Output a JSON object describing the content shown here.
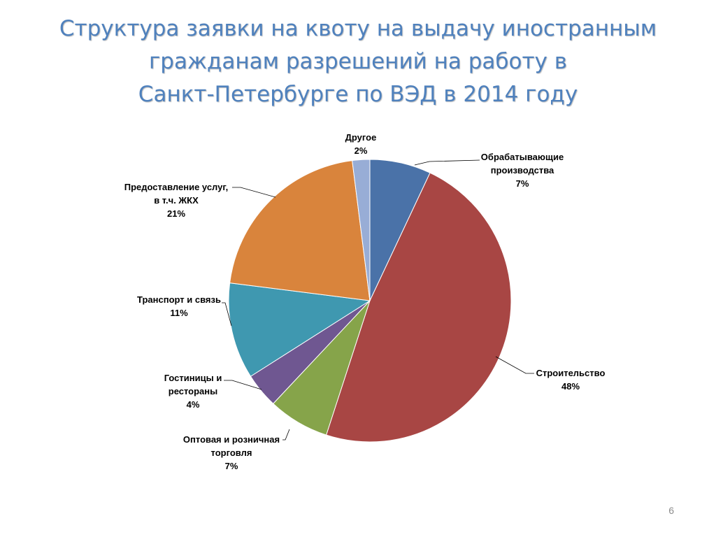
{
  "title": {
    "line1": "Структура заявки на квоту на выдачу иностранным",
    "line2": "гражданам разрешений на работу в",
    "line3": "Санкт-Петербурге по ВЭД в 2014 году"
  },
  "page_number": "6",
  "chart_data": {
    "type": "pie",
    "title": "Структура заявки на квоту на выдачу иностранным гражданам разрешений на работу в Санкт-Петербурге по ВЭД в 2014 году",
    "slices": [
      {
        "label": "Обрабатывающие производства",
        "label_lines": [
          "Обрабатывающие",
          "производства"
        ],
        "value": 7,
        "value_label": "7%",
        "color": "#4a72a8"
      },
      {
        "label": "Строительство",
        "label_lines": [
          "Строительство"
        ],
        "value": 48,
        "value_label": "48%",
        "color": "#a84644"
      },
      {
        "label": "Оптовая и розничная торговля",
        "label_lines": [
          "Оптовая и розничная",
          "торговля"
        ],
        "value": 7,
        "value_label": "7%",
        "color": "#86a44a"
      },
      {
        "label": "Гостиницы и рестораны",
        "label_lines": [
          "Гостиницы и",
          "рестораны"
        ],
        "value": 4,
        "value_label": "4%",
        "color": "#6f5791"
      },
      {
        "label": "Транспорт и связь",
        "label_lines": [
          "Транспорт и связь"
        ],
        "value": 11,
        "value_label": "11%",
        "color": "#3f98b0"
      },
      {
        "label": "Предоставление услуг, в т.ч. ЖКХ",
        "label_lines": [
          "Предоставление услуг,",
          "в  т.ч. ЖКХ"
        ],
        "value": 21,
        "value_label": "21%",
        "color": "#d9843c"
      },
      {
        "label": "Другое",
        "label_lines": [
          "Другое"
        ],
        "value": 2,
        "value_label": "2%",
        "color": "#98add6"
      }
    ],
    "start_angle_deg": 0,
    "direction": "clockwise",
    "labels_outside": true,
    "leader_lines": true
  }
}
